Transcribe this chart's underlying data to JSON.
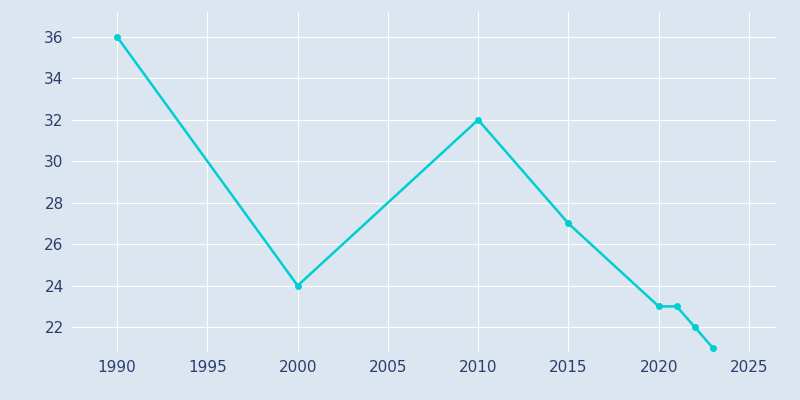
{
  "years": [
    1990,
    2000,
    2010,
    2015,
    2020,
    2021,
    2022,
    2023
  ],
  "population": [
    36,
    24,
    32,
    27,
    23,
    23,
    22,
    21
  ],
  "line_color": "#00CED1",
  "marker_color": "#00CED1",
  "bg_color": "#dce6f0",
  "plot_bg_color": "#dce6f0",
  "xlim": [
    1987.5,
    2026.5
  ],
  "ylim_min": 20.8,
  "ylim_max": 37.2,
  "xticks": [
    1990,
    1995,
    2000,
    2005,
    2010,
    2015,
    2020,
    2025
  ],
  "yticks": [
    22,
    24,
    26,
    28,
    30,
    32,
    34,
    36
  ],
  "grid_color": "#ffffff",
  "tick_color": "#2c3e6e",
  "linewidth": 1.8,
  "markersize": 4,
  "tick_labelsize": 11
}
